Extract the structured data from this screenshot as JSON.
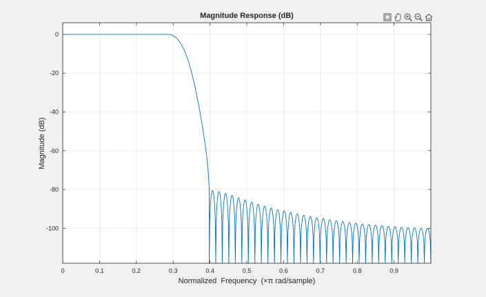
{
  "toolbar": {
    "buttons": [
      {
        "name": "export-icon"
      },
      {
        "name": "pan-hand-icon"
      },
      {
        "name": "zoom-in-icon"
      },
      {
        "name": "zoom-out-icon"
      },
      {
        "name": "home-icon"
      }
    ]
  },
  "colors": {
    "figure_bg": "#f0f0f0",
    "axes_bg": "#ffffff",
    "line": "#0072bd",
    "grid": "#e6e6e6",
    "axis": "#262626"
  },
  "chart_data": {
    "type": "line",
    "title": "Magnitude Response (dB)",
    "xlabel": "Normalized  Frequency  (×π rad/sample)",
    "ylabel": "Magnitude (dB)",
    "xlim": [
      0,
      1
    ],
    "ylim": [
      -118,
      6
    ],
    "xticks": [
      0,
      0.1,
      0.2,
      0.3,
      0.4,
      0.5,
      0.6,
      0.7,
      0.8,
      0.9
    ],
    "xtick_labels": [
      "0",
      "0.1",
      "0.2",
      "0.3",
      "0.4",
      "0.5",
      "0.6",
      "0.7",
      "0.8",
      "0.9"
    ],
    "yticks": [
      0,
      -20,
      -40,
      -60,
      -80,
      -100
    ],
    "ytick_labels": [
      "0",
      "-20",
      "-40",
      "-60",
      "-80",
      "-100"
    ],
    "grid": true,
    "series": [
      {
        "passband": [
          [
            0,
            0
          ],
          [
            0.29,
            0
          ],
          [
            0.3,
            -0.6
          ],
          [
            0.31,
            -2
          ],
          [
            0.32,
            -4.5
          ],
          [
            0.33,
            -8
          ],
          [
            0.34,
            -13
          ],
          [
            0.35,
            -19.5
          ],
          [
            0.36,
            -27.5
          ],
          [
            0.37,
            -37
          ],
          [
            0.38,
            -48
          ],
          [
            0.39,
            -61
          ],
          [
            0.395,
            -70
          ],
          [
            0.398,
            -80
          ]
        ],
        "stopband_lobe_peaks": [
          -80.5,
          -81,
          -82,
          -83,
          -84.2,
          -85.3,
          -86.5,
          -87.5,
          -88.5,
          -89.5,
          -90.3,
          -91,
          -91.8,
          -92.5,
          -93.2,
          -93.8,
          -94.5,
          -95,
          -95.6,
          -96,
          -96.5,
          -97,
          -97.3,
          -97.7,
          -98,
          -98.3,
          -98.6,
          -98.9,
          -99.1,
          -99.4,
          -99.6,
          -99.8,
          -100,
          -100
        ],
        "stopband_start": 0.398,
        "stopband_end": 1.0
      }
    ]
  }
}
